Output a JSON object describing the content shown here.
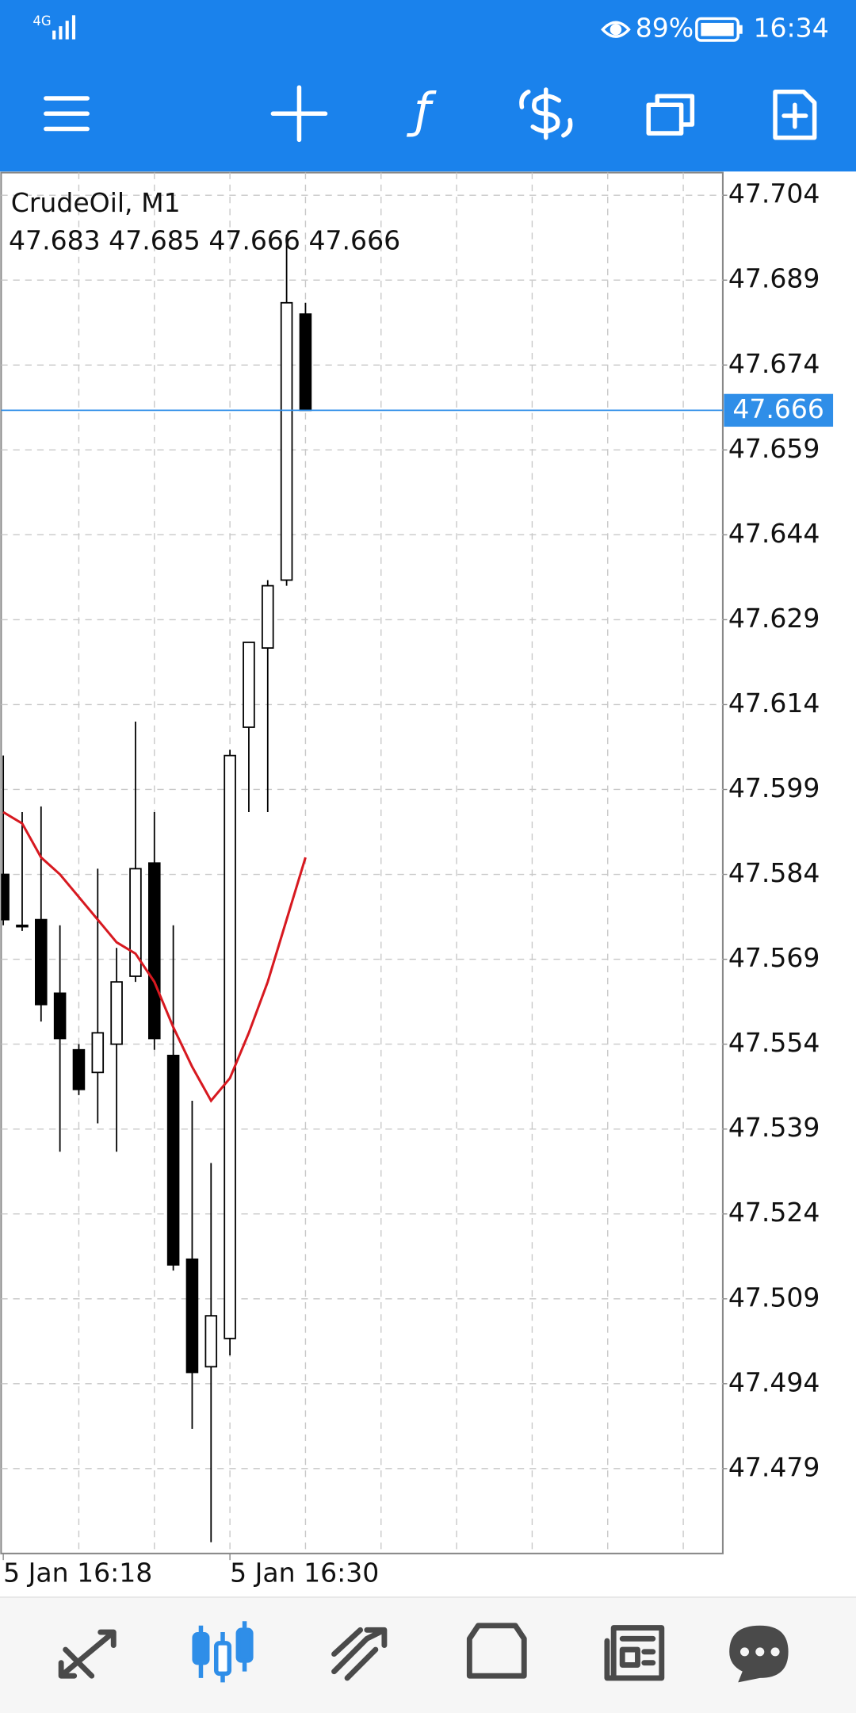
{
  "status_bar": {
    "network": "4G",
    "battery": "89%",
    "time": "16:34"
  },
  "chart_data": {
    "type": "candlestick",
    "title": "CrudeOil, M1",
    "categories": [
      "5 Jan 16:18",
      null,
      null,
      null,
      null,
      null,
      null,
      null,
      null,
      null,
      null,
      null,
      "5 Jan 16:30",
      null,
      null,
      null,
      null
    ],
    "open": [
      47.584,
      47.575,
      47.576,
      47.563,
      47.553,
      47.549,
      47.554,
      47.566,
      47.586,
      47.552,
      47.516,
      47.497,
      47.502,
      47.61,
      47.624,
      47.636,
      47.683
    ],
    "high": [
      47.605,
      47.595,
      47.596,
      47.575,
      47.554,
      47.585,
      47.571,
      47.611,
      47.595,
      47.575,
      47.544,
      47.533,
      47.606,
      47.625,
      47.636,
      47.697,
      47.685
    ],
    "low": [
      47.575,
      47.574,
      47.558,
      47.535,
      47.545,
      47.54,
      47.535,
      47.565,
      47.553,
      47.514,
      47.486,
      47.466,
      47.499,
      47.595,
      47.595,
      47.635,
      47.666
    ],
    "close": [
      47.576,
      47.575,
      47.561,
      47.555,
      47.546,
      47.556,
      47.565,
      47.585,
      47.555,
      47.515,
      47.496,
      47.506,
      47.605,
      47.625,
      47.635,
      47.685,
      47.666
    ],
    "up_color": "#ffffff",
    "down_color": "#000000",
    "moving_average": {
      "color": "#d71920",
      "values": [
        47.595,
        47.593,
        47.587,
        47.584,
        47.58,
        47.576,
        47.572,
        47.57,
        47.565,
        47.557,
        47.55,
        47.544,
        47.548,
        47.556,
        47.565,
        47.576,
        47.587
      ]
    },
    "current_price": 47.666,
    "current_price_color": "#2f8ee8",
    "ylim": [
      47.464,
      47.708
    ],
    "yticks": [
      47.704,
      47.689,
      47.674,
      47.659,
      47.644,
      47.629,
      47.614,
      47.599,
      47.584,
      47.569,
      47.554,
      47.539,
      47.524,
      47.509,
      47.494,
      47.479
    ],
    "grid": true
  }
}
